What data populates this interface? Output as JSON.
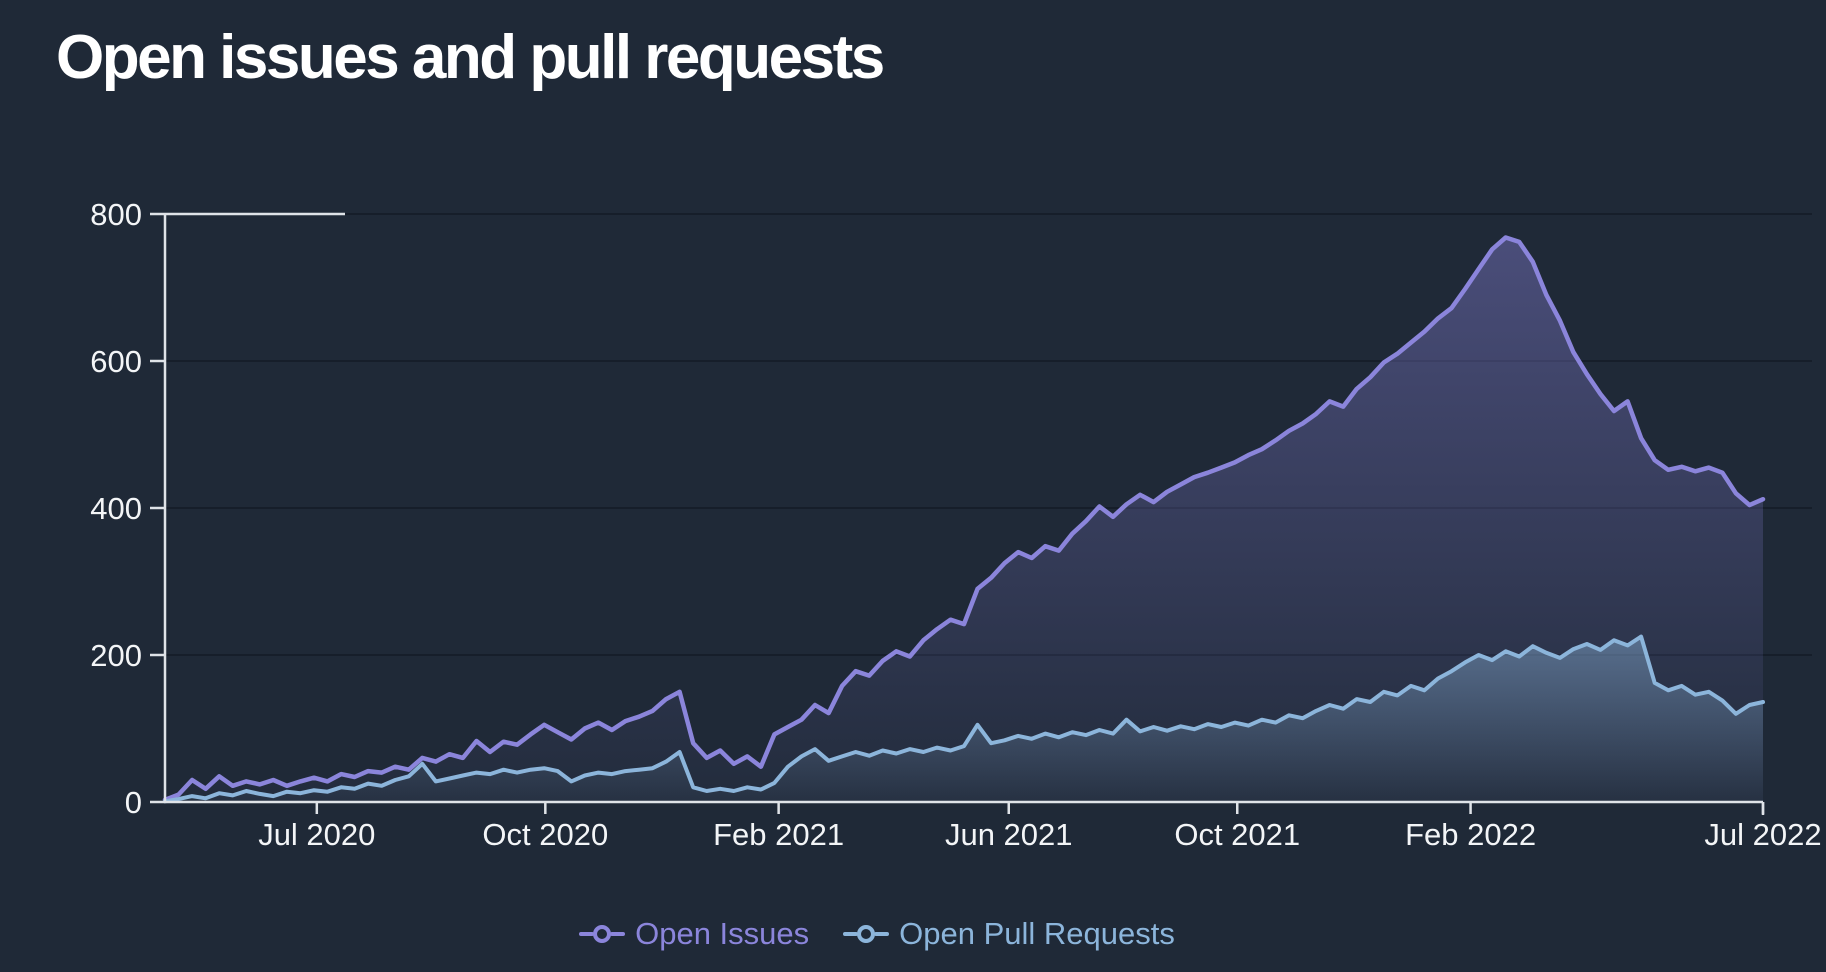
{
  "page": {
    "title": "Open issues and pull requests"
  },
  "chart_data": {
    "type": "area",
    "title": "Open issues and pull requests",
    "background": "#1f2937",
    "axis_color": "#dfe3e8",
    "label_color": "#f3f5f7",
    "gridline_color": "rgba(10,16,26,0.55)",
    "grid": true,
    "legend_position": "bottom",
    "y_axis": {
      "lim": [
        0,
        800
      ],
      "ticks": [
        0,
        200,
        400,
        600,
        800
      ]
    },
    "x_axis": {
      "ticks": [
        {
          "label": "Jul 2020",
          "pos": 0.095
        },
        {
          "label": "Oct 2020",
          "pos": 0.238
        },
        {
          "label": "Feb 2021",
          "pos": 0.384
        },
        {
          "label": "Jun 2021",
          "pos": 0.528
        },
        {
          "label": "Oct 2021",
          "pos": 0.671
        },
        {
          "label": "Feb 2022",
          "pos": 0.817
        },
        {
          "label": "Jul 2022",
          "pos": 1.0
        }
      ]
    },
    "series": [
      {
        "name": "Open Issues",
        "color": "#8b85db",
        "fill_from": "rgba(134,128,214,0.42)",
        "fill_to": "rgba(134,128,214,0.03)",
        "line_width": 4.5,
        "values": [
          3,
          10,
          30,
          18,
          35,
          22,
          28,
          24,
          30,
          22,
          28,
          33,
          28,
          38,
          34,
          42,
          40,
          48,
          44,
          60,
          55,
          65,
          60,
          83,
          68,
          82,
          78,
          92,
          105,
          95,
          85,
          100,
          108,
          98,
          110,
          116,
          124,
          140,
          150,
          80,
          60,
          70,
          52,
          62,
          48,
          92,
          102,
          112,
          132,
          121,
          158,
          178,
          172,
          192,
          205,
          198,
          220,
          235,
          248,
          242,
          290,
          305,
          325,
          340,
          332,
          348,
          342,
          365,
          382,
          402,
          388,
          405,
          418,
          408,
          422,
          432,
          442,
          448,
          455,
          462,
          472,
          480,
          492,
          505,
          515,
          528,
          545,
          538,
          562,
          578,
          598,
          610,
          625,
          640,
          658,
          672,
          698,
          725,
          752,
          768,
          762,
          735,
          690,
          655,
          612,
          582,
          555,
          532,
          545,
          495,
          465,
          452,
          456,
          450,
          455,
          448,
          420,
          404,
          412
        ]
      },
      {
        "name": "Open Pull Requests",
        "color": "#8cb5db",
        "fill_from": "rgba(140,181,219,0.45)",
        "fill_to": "rgba(140,181,219,0.04)",
        "line_width": 4,
        "values": [
          1,
          4,
          8,
          5,
          12,
          9,
          15,
          11,
          8,
          14,
          12,
          16,
          14,
          20,
          18,
          25,
          22,
          30,
          35,
          52,
          28,
          32,
          36,
          40,
          38,
          44,
          40,
          44,
          46,
          42,
          28,
          36,
          40,
          38,
          42,
          44,
          46,
          55,
          68,
          20,
          15,
          18,
          15,
          20,
          17,
          26,
          48,
          62,
          72,
          56,
          62,
          68,
          63,
          70,
          66,
          72,
          68,
          74,
          70,
          76,
          105,
          80,
          84,
          90,
          86,
          93,
          88,
          95,
          91,
          98,
          93,
          112,
          96,
          102,
          97,
          103,
          99,
          106,
          102,
          108,
          104,
          112,
          108,
          118,
          114,
          124,
          132,
          127,
          140,
          136,
          150,
          145,
          158,
          152,
          168,
          178,
          190,
          200,
          193,
          205,
          198,
          212,
          203,
          196,
          208,
          215,
          207,
          220,
          213,
          225,
          162,
          152,
          158,
          146,
          150,
          138,
          120,
          132,
          136
        ]
      }
    ]
  }
}
